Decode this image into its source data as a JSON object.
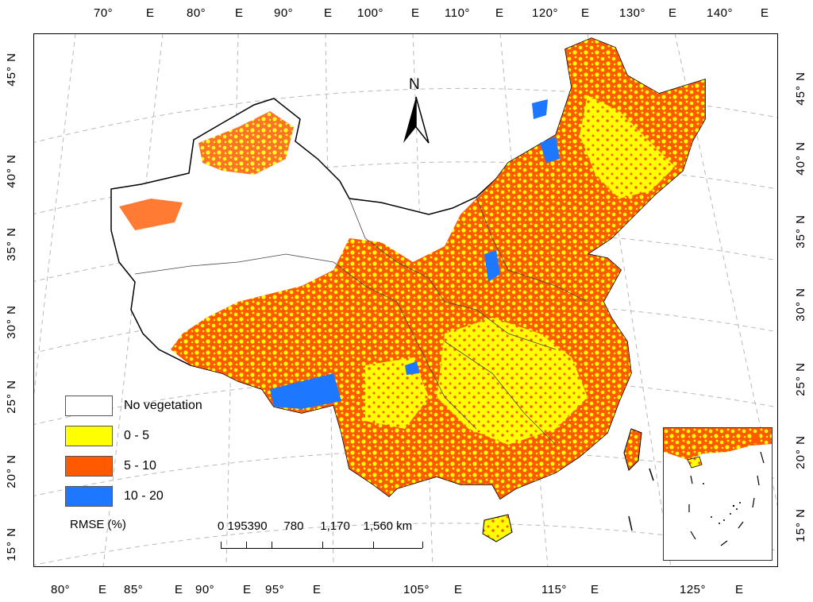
{
  "top_ticks": [
    "70°",
    "E",
    "80°",
    "E",
    "90°",
    "E",
    "100°",
    "E",
    "110°",
    "E",
    "120°",
    "E",
    "130°",
    "E",
    "140°",
    "E"
  ],
  "bottom_ticks": [
    "80°",
    "E",
    "85°",
    "E",
    "90°",
    "E",
    "95°",
    "E",
    "105°",
    "E",
    "115°",
    "E",
    "125°",
    "E"
  ],
  "left_ticks": [
    "45° N",
    "40° N",
    "35° N",
    "30° N",
    "25° N",
    "20° N",
    "15° N"
  ],
  "right_ticks": [
    "45° N",
    "40° N",
    "35° N",
    "30° N",
    "25° N",
    "20° N",
    "15° N"
  ],
  "north_arrow": {
    "label": "N"
  },
  "legend": {
    "title": "RMSE (%)",
    "items": [
      {
        "label": "No vegetation",
        "color": "#ffffff"
      },
      {
        "label": "0 - 5",
        "color": "#ffff00"
      },
      {
        "label": "5 - 10",
        "color": "#ff5a00"
      },
      {
        "label": "10 - 20",
        "color": "#1e78ff"
      }
    ]
  },
  "scalebar": {
    "labels_text": "0 195390     780     1,170    1,560 km",
    "unit": "km"
  },
  "colors": {
    "no_vegetation": "#ffffff",
    "low": "#ffff00",
    "mid": "#ff5a00",
    "high": "#1e78ff",
    "graticule": "#b8b8b8",
    "boundary": "#000000"
  }
}
